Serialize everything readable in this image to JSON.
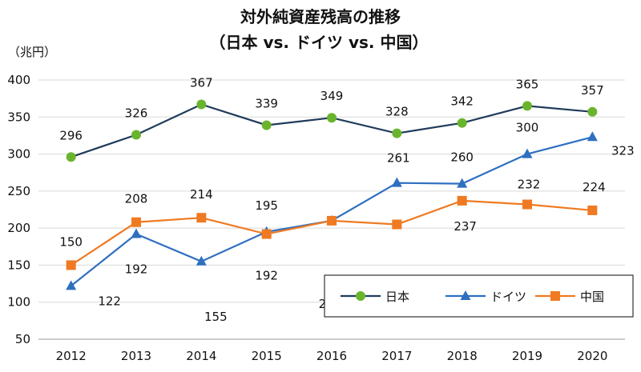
{
  "chart_data": {
    "type": "line",
    "title": "対外純資産残高の推移",
    "subtitle": "（日本 vs. ドイツ vs. 中国）",
    "ylabel": "（兆円）",
    "xlabel": "",
    "categories": [
      "2012",
      "2013",
      "2014",
      "2015",
      "2016",
      "2017",
      "2018",
      "2019",
      "2020"
    ],
    "ylim": [
      50,
      400
    ],
    "yticks": [
      50,
      100,
      150,
      200,
      250,
      300,
      350,
      400
    ],
    "grid": true,
    "legend_position": "bottom-right",
    "series": [
      {
        "name": "日本",
        "color": "#1f3b5a",
        "marker": "circle",
        "marker_color": "#6ab42d",
        "values": [
          296,
          326,
          367,
          339,
          349,
          328,
          342,
          365,
          357
        ]
      },
      {
        "name": "ドイツ",
        "color": "#2e6fc0",
        "marker": "triangle",
        "marker_color": "#2e6fc0",
        "values": [
          122,
          192,
          155,
          195,
          210,
          261,
          260,
          300,
          323
        ]
      },
      {
        "name": "中国",
        "color": "#ef7a22",
        "marker": "square",
        "marker_color": "#ef7a22",
        "values": [
          150,
          208,
          214,
          192,
          210,
          205,
          237,
          232,
          224
        ]
      }
    ]
  }
}
